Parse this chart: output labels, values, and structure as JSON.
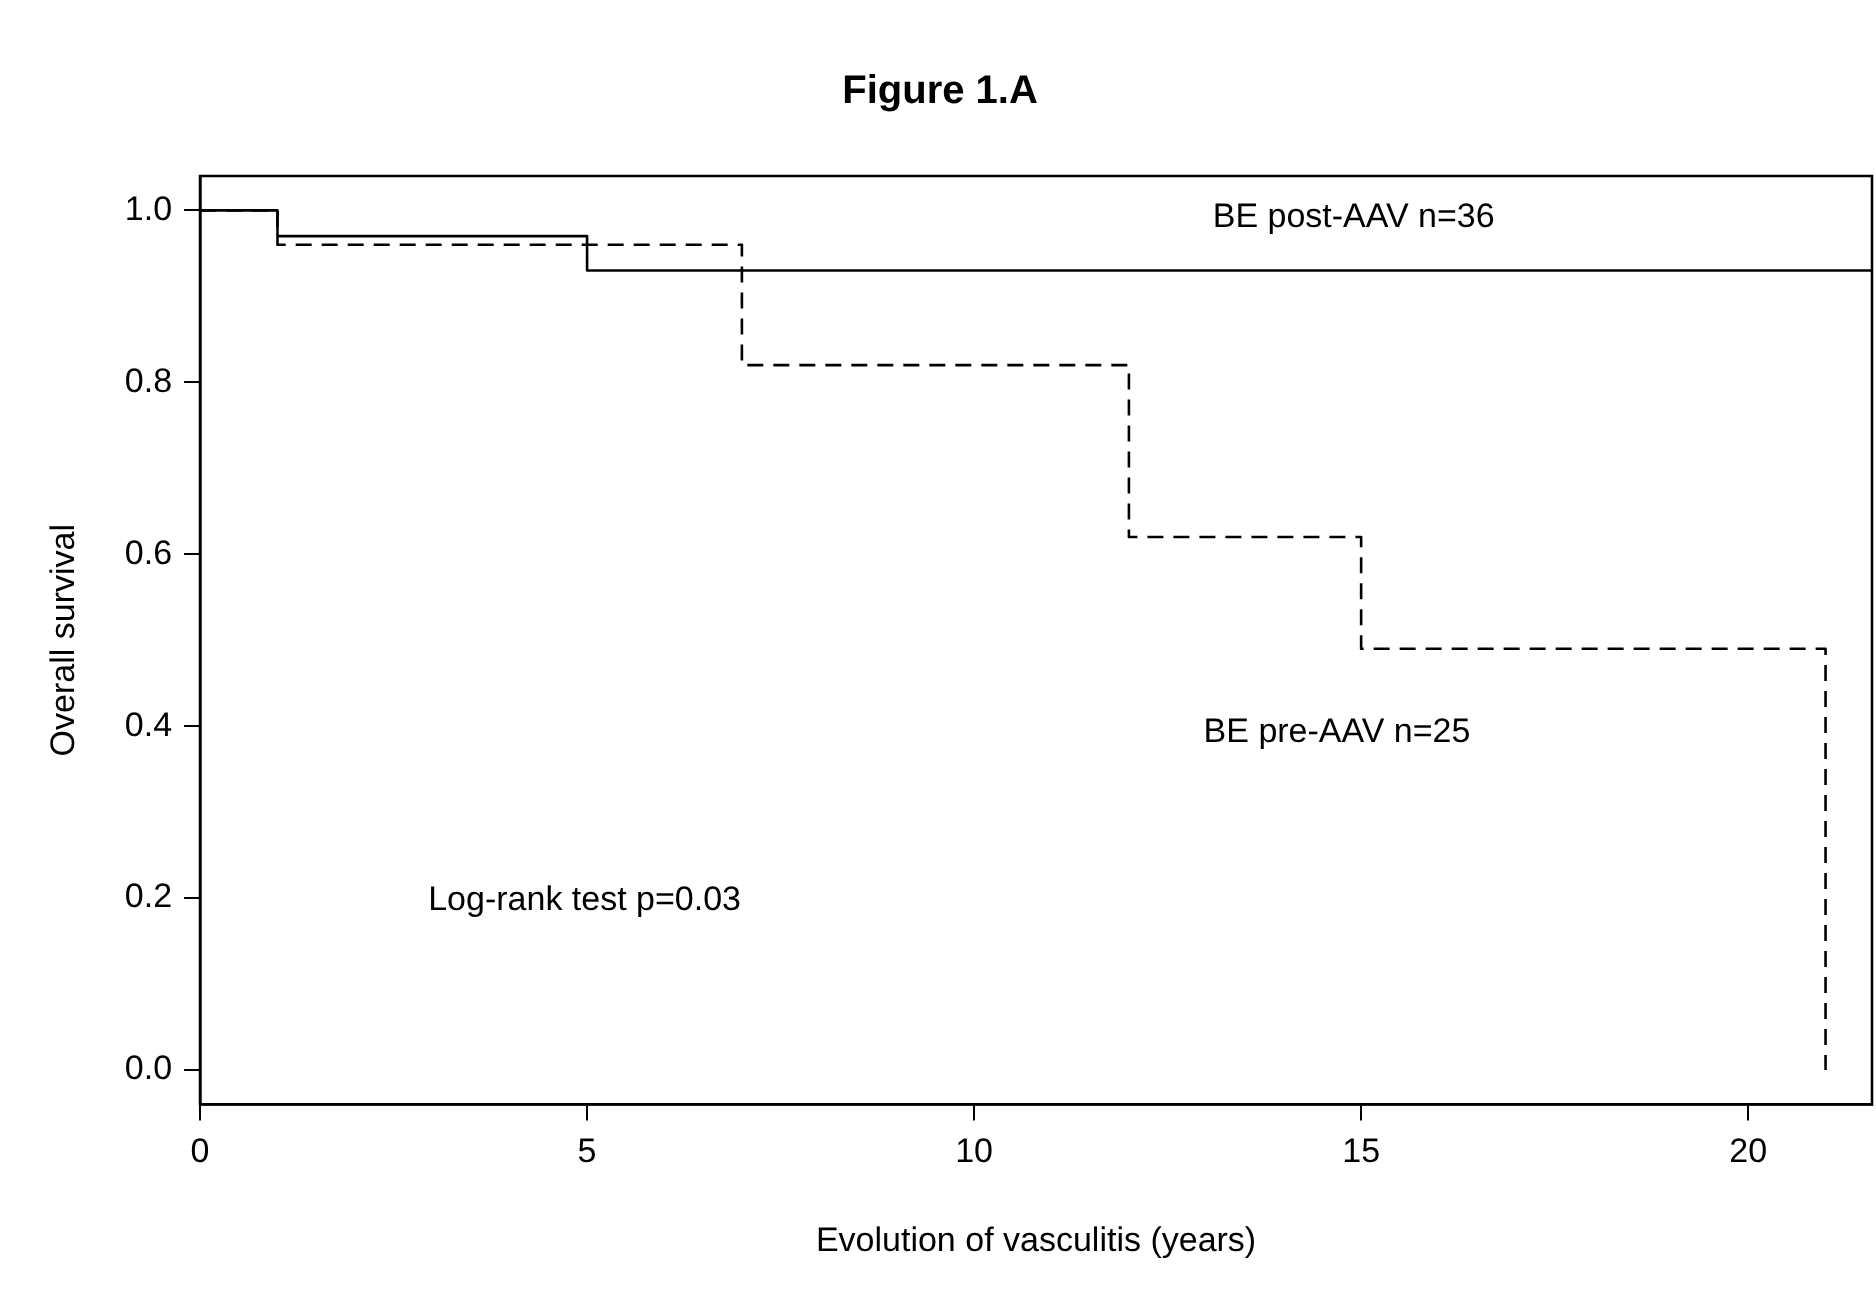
{
  "chart_data": {
    "type": "step",
    "title": "Figure 1.A",
    "xlabel": "Evolution of vasculitis (years)",
    "ylabel": "Overall survival",
    "xlim": [
      0,
      21.6
    ],
    "xticks": [
      0,
      5,
      10,
      15,
      20
    ],
    "ylim": [
      -0.04,
      1.04
    ],
    "yticks": [
      {
        "value": 0,
        "label": "0.0"
      },
      {
        "value": 0.2,
        "label": "0.2"
      },
      {
        "value": 0.4,
        "label": "0.4"
      },
      {
        "value": 0.6,
        "label": "0.6"
      },
      {
        "value": 0.8,
        "label": "0.8"
      },
      {
        "value": 1,
        "label": "1.0"
      }
    ],
    "series": [
      {
        "name": "BE post-AAV n=36",
        "color": "#000000",
        "line_style": "solid",
        "x": [
          0,
          1,
          5,
          21.6
        ],
        "values": [
          1,
          0.97,
          0.93,
          0.93
        ]
      },
      {
        "name": "BE pre-AAV n=25",
        "color": "#000000",
        "line_style": "dashed",
        "x": [
          0,
          1,
          7,
          12,
          15,
          21
        ],
        "values": [
          1,
          0.96,
          0.82,
          0.62,
          0.49,
          0
        ]
      }
    ],
    "annotations": [
      "Log-rank test p=0.03"
    ],
    "grid": false,
    "legend": false,
    "marker": "none"
  }
}
